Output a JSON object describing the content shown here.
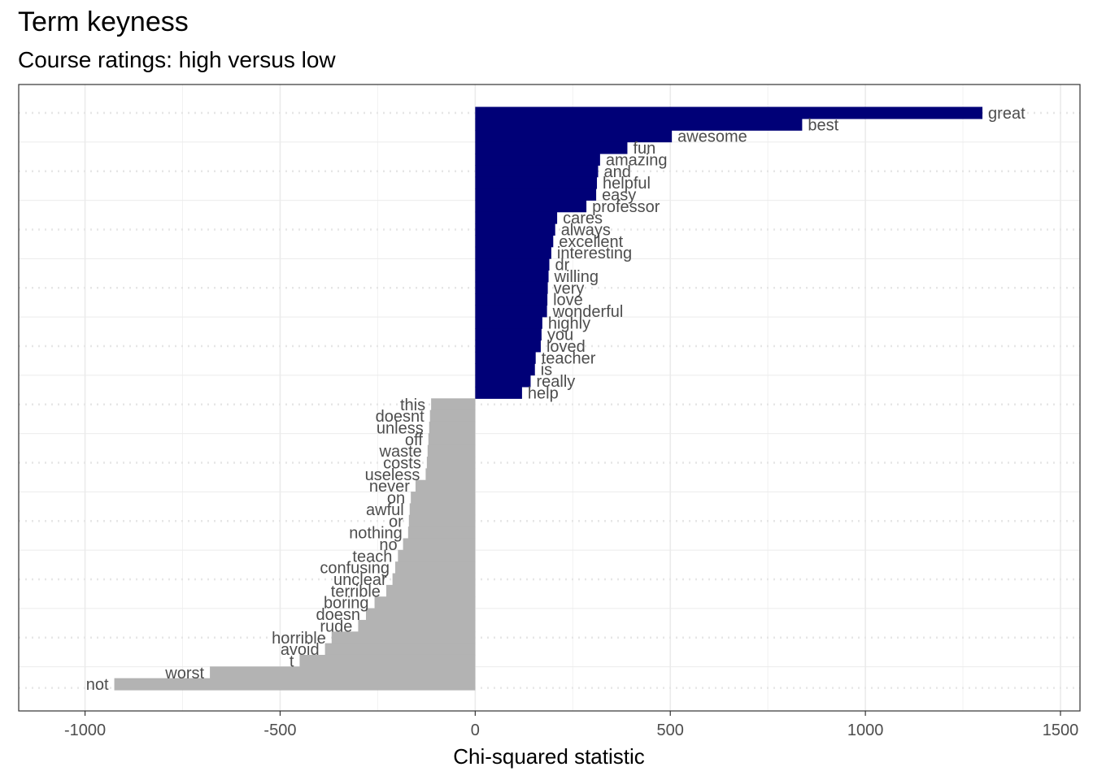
{
  "chart_data": {
    "type": "bar",
    "orientation": "horizontal",
    "title": "Term keyness",
    "subtitle": "Course ratings: high versus low",
    "xlabel": "Chi-squared statistic",
    "xlim": [
      -1170,
      1550
    ],
    "xticks": [
      -1000,
      -500,
      0,
      500,
      1000,
      1500
    ],
    "xtick_labels": [
      "-1000",
      "-500",
      "0",
      "500",
      "1000",
      "1500"
    ],
    "grid": true,
    "colors": {
      "positive": "#000077",
      "negative": "#b3b3b3"
    },
    "terms": [
      "great",
      "best",
      "awesome",
      "fun",
      "amazing",
      "and",
      "helpful",
      "easy",
      "professor",
      "cares",
      "always",
      "excellent",
      "interesting",
      "dr",
      "willing",
      "very",
      "love",
      "wonderful",
      "highly",
      "you",
      "loved",
      "teacher",
      "is",
      "really",
      "help",
      "this",
      "doesnt",
      "unless",
      "off",
      "waste",
      "costs",
      "useless",
      "never",
      "on",
      "awful",
      "or",
      "nothing",
      "no",
      "teach",
      "confusing",
      "unclear",
      "terrible",
      "boring",
      "doesn",
      "rude",
      "horrible",
      "avoid",
      "t",
      "worst",
      "not"
    ],
    "values": [
      1300,
      838,
      504,
      390,
      320,
      315,
      312,
      310,
      285,
      210,
      205,
      200,
      195,
      190,
      188,
      186,
      185,
      184,
      172,
      170,
      168,
      155,
      153,
      142,
      120,
      -113,
      -116,
      -118,
      -120,
      -122,
      -124,
      -127,
      -153,
      -165,
      -168,
      -170,
      -172,
      -185,
      -198,
      -205,
      -212,
      -228,
      -258,
      -280,
      -300,
      -368,
      -385,
      -450,
      -680,
      -925
    ]
  }
}
